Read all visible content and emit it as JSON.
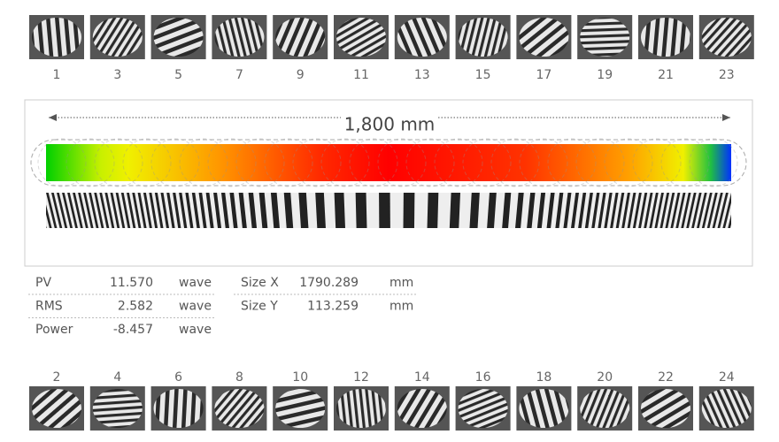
{
  "top_thumbnails": {
    "labels": [
      "1",
      "3",
      "5",
      "7",
      "9",
      "11",
      "13",
      "15",
      "17",
      "19",
      "21",
      "23"
    ]
  },
  "bottom_thumbnails": {
    "labels": [
      "2",
      "4",
      "6",
      "8",
      "10",
      "12",
      "14",
      "16",
      "18",
      "20",
      "22",
      "24"
    ]
  },
  "panel": {
    "dimension": "1,800 mm"
  },
  "stats": {
    "left": [
      {
        "name": "PV",
        "value": "11.570",
        "unit": "wave"
      },
      {
        "name": "RMS",
        "value": "2.582",
        "unit": "wave"
      },
      {
        "name": "Power",
        "value": "-8.457",
        "unit": "wave"
      }
    ],
    "right": [
      {
        "name": "Size X",
        "value": "1790.289",
        "unit": "mm"
      },
      {
        "name": "Size Y",
        "value": "113.259",
        "unit": "mm"
      }
    ]
  }
}
